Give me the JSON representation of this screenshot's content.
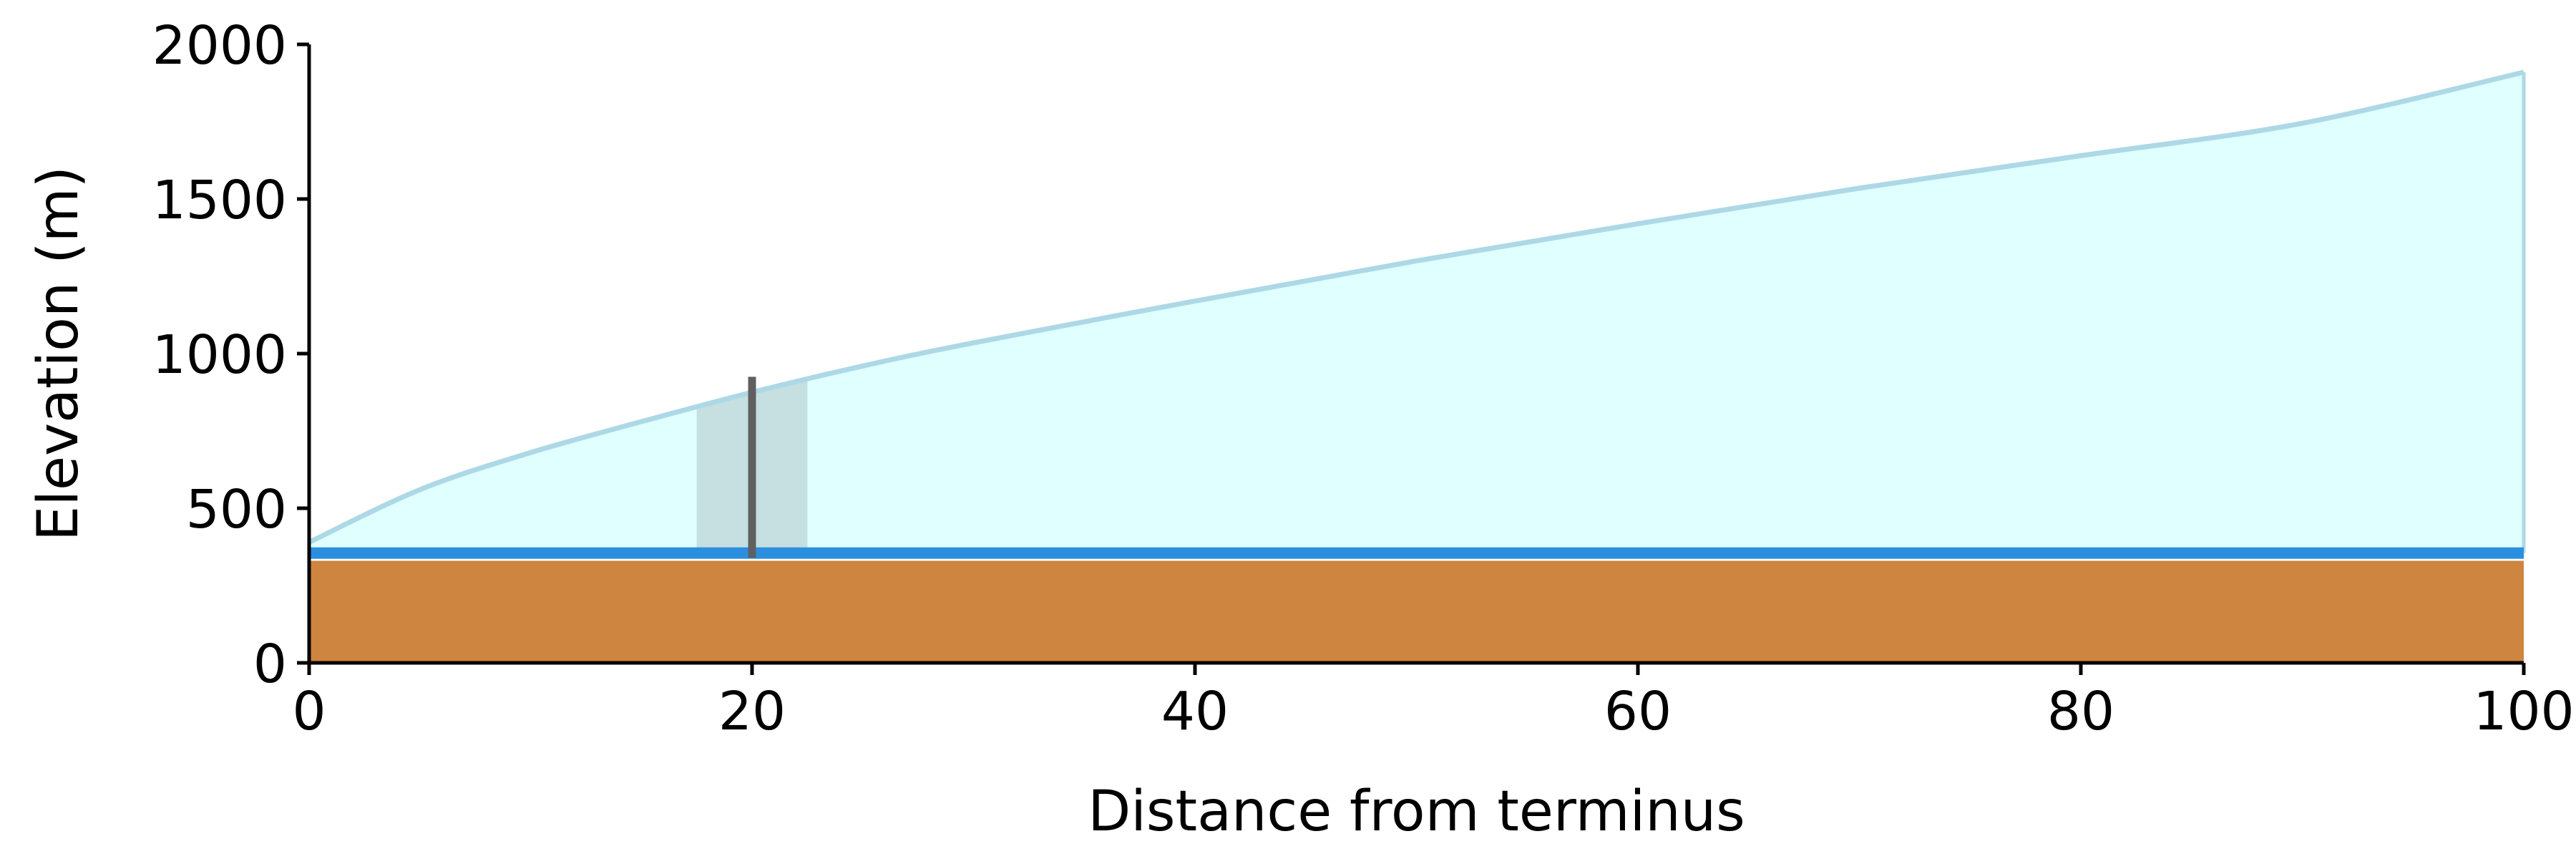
{
  "chart_data": {
    "type": "area",
    "title": "",
    "xlabel": "Distance from terminus",
    "ylabel": "Elevation (m)",
    "xlim": [
      0,
      100
    ],
    "ylim": [
      0,
      2000
    ],
    "x_ticks": [
      0,
      20,
      40,
      60,
      80,
      100
    ],
    "y_ticks": [
      0,
      500,
      1000,
      1500,
      2000
    ],
    "grid": false,
    "legend": "none",
    "bedrock": {
      "top": 330,
      "color": "#cd853f"
    },
    "water_line": {
      "level": 355,
      "color": "#2b8fe0"
    },
    "ice_surface": {
      "x": [
        0,
        5,
        10,
        15,
        20,
        25,
        30,
        40,
        50,
        60,
        70,
        80,
        90,
        100
      ],
      "y": [
        390,
        560,
        680,
        780,
        875,
        960,
        1035,
        1170,
        1300,
        1420,
        1535,
        1640,
        1745,
        1910
      ],
      "fill": "#e0ffff",
      "stroke": "#add8e6"
    },
    "shaded_region": {
      "x": [
        17.5,
        22.5
      ],
      "color": "#c6dfe1"
    },
    "marker": {
      "x": 20,
      "y": [
        340,
        925
      ],
      "color": "#606060"
    }
  }
}
